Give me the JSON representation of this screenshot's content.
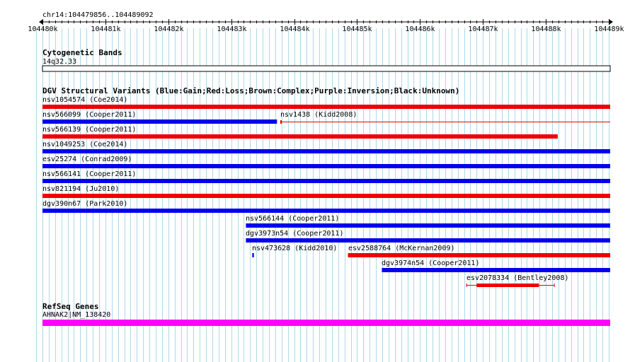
{
  "region": {
    "label": "chr14:104479856..104489092",
    "start": 104479856,
    "end": 104489092
  },
  "ruler": {
    "ticks": [
      {
        "pos": 104480000,
        "label": "104480k"
      },
      {
        "pos": 104481000,
        "label": "104481k"
      },
      {
        "pos": 104482000,
        "label": "104482k"
      },
      {
        "pos": 104483000,
        "label": "104483k"
      },
      {
        "pos": 104484000,
        "label": "104484k"
      },
      {
        "pos": 104485000,
        "label": "104485k"
      },
      {
        "pos": 104486000,
        "label": "104486k"
      },
      {
        "pos": 104487000,
        "label": "104487k"
      },
      {
        "pos": 104488000,
        "label": "104488k"
      },
      {
        "pos": 104489000,
        "label": "104489k"
      }
    ]
  },
  "tracks": {
    "cytoband": {
      "title": "Cytogenetic Bands",
      "band": "14q32.33"
    },
    "dgv": {
      "title": "DGV Structural Variants (Blue:Gain;Red:Loss;Brown:Complex;Purple:Inversion;Black:Unknown)",
      "features": [
        {
          "label": "nsv1054574 (Coe2014)",
          "type": "loss",
          "start": 104480000,
          "end": 104489092,
          "row": 0
        },
        {
          "label": "nsv566099 (Cooper2011)",
          "type": "gain",
          "start": 104480000,
          "end": 104483727,
          "row": 1
        },
        {
          "label": "nsv1438 (Kidd2008)",
          "type": "loss",
          "start": 104483785,
          "end": 104489092,
          "row": 1,
          "style": "thin"
        },
        {
          "label": "nsv566139 (Cooper2011)",
          "type": "loss",
          "start": 104480000,
          "end": 104488189,
          "row": 2
        },
        {
          "label": "nsv1049253 (Coe2014)",
          "type": "gain",
          "start": 104480000,
          "end": 104489092,
          "row": 3
        },
        {
          "label": "esv25274 (Conrad2009)",
          "type": "gain",
          "start": 104480000,
          "end": 104489092,
          "row": 4
        },
        {
          "label": "nsv566141 (Cooper2011)",
          "type": "gain",
          "start": 104480000,
          "end": 104489092,
          "row": 5
        },
        {
          "label": "nsv821194 (Ju2010)",
          "type": "loss",
          "start": 104480000,
          "end": 104489092,
          "row": 6
        },
        {
          "label": "dgv390n67 (Park2010)",
          "type": "gain",
          "start": 104480000,
          "end": 104489092,
          "row": 7
        },
        {
          "label": "nsv566144 (Cooper2011)",
          "type": "gain",
          "start": 104483233,
          "end": 104489092,
          "row": 8
        },
        {
          "label": "dgv3973n54 (Cooper2011)",
          "type": "gain",
          "start": 104483233,
          "end": 104489092,
          "row": 9
        },
        {
          "label": "nsv473628 (Kidd2010)",
          "type": "gain",
          "start": 104483334,
          "end": 104483360,
          "row": 10
        },
        {
          "label": "esv2588764 (McKernan2009)",
          "type": "loss",
          "start": 104484855,
          "end": 104489092,
          "row": 10
        },
        {
          "label": "dgv3974n54 (Cooper2011)",
          "type": "gain",
          "start": 104485394,
          "end": 104489092,
          "row": 11
        },
        {
          "label": "esv2078334 (Bentley2008)",
          "type": "loss",
          "start": 104486735,
          "end": 104488140,
          "row": 12,
          "style": "split",
          "inner_start": 104486900,
          "inner_end": 104487890
        }
      ]
    },
    "refseq": {
      "title": "RefSeq Genes",
      "features": [
        {
          "label": "AHNAK2|NM_138420",
          "start": 104480000,
          "end": 104489092
        }
      ]
    }
  },
  "colors": {
    "gain": "#0000ee",
    "loss": "#ee0000",
    "gene": "#ff00ff",
    "grid": "#add8e6",
    "axis": "#000000",
    "background": "#ffffff"
  }
}
